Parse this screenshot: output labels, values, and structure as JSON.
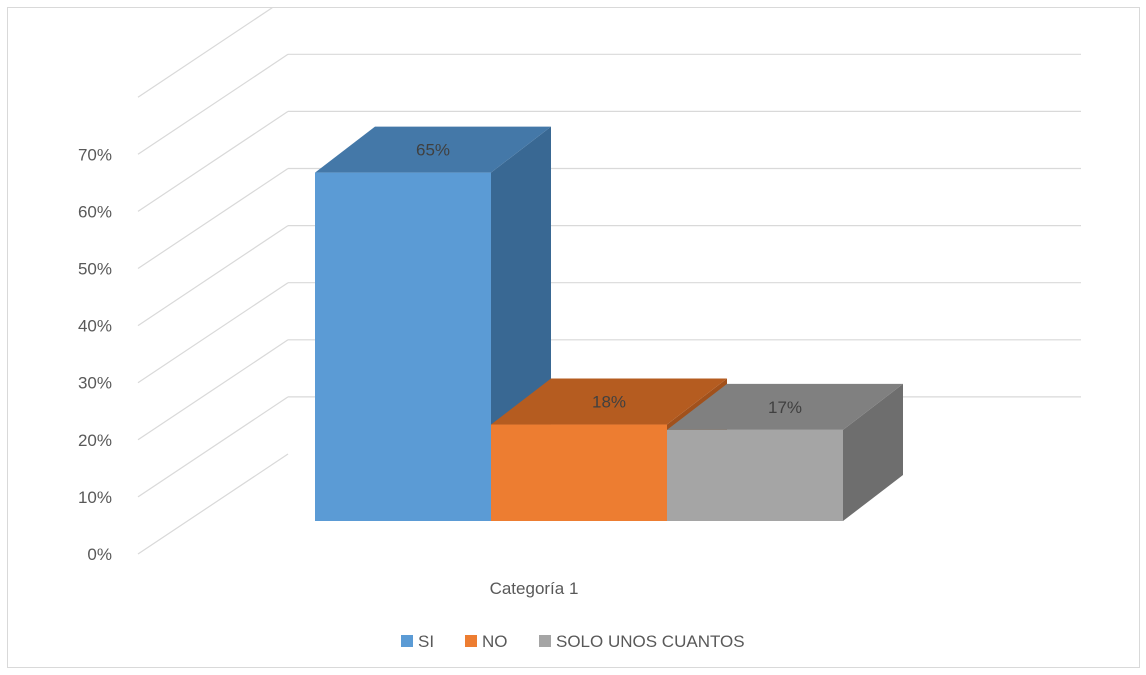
{
  "chart_data": {
    "type": "bar",
    "style": "3d-column",
    "categories": [
      "Categoría 1"
    ],
    "series": [
      {
        "name": "SI",
        "values": [
          0.65
        ],
        "label": "65%",
        "color": "#5b9bd5",
        "top_color": "#4478a8",
        "side_color": "#396893"
      },
      {
        "name": "NO",
        "values": [
          0.18
        ],
        "label": "18%",
        "color": "#ed7d31",
        "top_color": "#b55c20",
        "side_color": "#a1511c"
      },
      {
        "name": "SOLO UNOS CUANTOS",
        "values": [
          0.17
        ],
        "label": "17%",
        "color": "#a5a5a5",
        "top_color": "#808080",
        "side_color": "#6e6e6e"
      }
    ],
    "y_ticks": [
      "0%",
      "10%",
      "20%",
      "30%",
      "40%",
      "50%",
      "60%",
      "70%"
    ],
    "ylim": [
      0,
      0.7
    ],
    "grid": true,
    "legend_position": "bottom",
    "title": "",
    "xlabel": "",
    "ylabel": ""
  }
}
